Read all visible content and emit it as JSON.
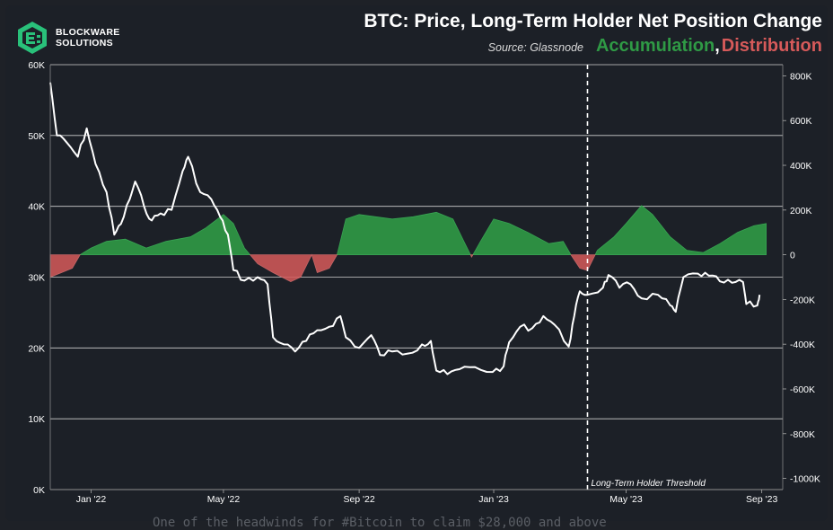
{
  "brand": {
    "line1": "BLOCKWARE",
    "line2": "SOLUTIONS"
  },
  "header": {
    "title": "BTC: Price, Long-Term Holder Net Position Change",
    "source": "Source: Glassnode",
    "accumulation": "Accumulation",
    "comma": ",",
    "distribution": "Distribution"
  },
  "colors": {
    "accumulation": "#2f9a45",
    "distribution": "#d65a5a",
    "price_line": "#ffffff",
    "background": "#1c2027"
  },
  "footer": {
    "text": "One of the headwinds for #Bitcoin to claim $28,000 and above"
  },
  "chart_data": {
    "type": "line",
    "title": "BTC: Price, Long-Term Holder Net Position Change",
    "threshold_label": "Long-Term Holder Threshold",
    "threshold_date": "2023-03-27",
    "x_ticks": [
      {
        "date": "2022-01-01",
        "label": "Jan '22"
      },
      {
        "date": "2022-05-01",
        "label": "May '22"
      },
      {
        "date": "2022-09-01",
        "label": "Sep '22"
      },
      {
        "date": "2023-01-01",
        "label": "Jan '23"
      },
      {
        "date": "2023-05-01",
        "label": "May '23"
      },
      {
        "date": "2023-09-01",
        "label": "Sep '23"
      }
    ],
    "x_range": [
      "2021-11-25",
      "2023-09-20"
    ],
    "left_axis": {
      "ylim": [
        0,
        60000
      ],
      "ticks": [
        0,
        10000,
        20000,
        30000,
        40000,
        50000,
        60000
      ],
      "tick_labels": [
        "0K",
        "10K",
        "20K",
        "30K",
        "40K",
        "50K",
        "60K"
      ],
      "grid": true
    },
    "right_axis": {
      "ylim": [
        -1050000,
        850000
      ],
      "ticks": [
        -1000000,
        -800000,
        -600000,
        -400000,
        -200000,
        0,
        200000,
        400000,
        600000,
        800000
      ],
      "tick_labels": [
        "-1000K",
        "-800K",
        "-600K",
        "-400K",
        "-200K",
        "0",
        "200K",
        "400K",
        "600K",
        "800K"
      ]
    },
    "series": [
      {
        "name": "Accumulation",
        "axis": "right",
        "kind": "area",
        "points": [
          [
            "2021-11-25",
            -100000
          ],
          [
            "2021-12-15",
            -60000
          ],
          [
            "2021-12-22",
            0
          ],
          [
            "2022-01-01",
            30000
          ],
          [
            "2022-01-15",
            60000
          ],
          [
            "2022-02-01",
            70000
          ],
          [
            "2022-02-20",
            30000
          ],
          [
            "2022-03-10",
            60000
          ],
          [
            "2022-04-01",
            80000
          ],
          [
            "2022-04-15",
            120000
          ],
          [
            "2022-05-01",
            180000
          ],
          [
            "2022-05-10",
            140000
          ],
          [
            "2022-05-20",
            30000
          ],
          [
            "2022-06-01",
            -40000
          ],
          [
            "2022-06-15",
            -80000
          ],
          [
            "2022-07-01",
            -120000
          ],
          [
            "2022-07-10",
            -100000
          ],
          [
            "2022-07-20",
            0
          ],
          [
            "2022-07-25",
            -80000
          ],
          [
            "2022-08-05",
            -60000
          ],
          [
            "2022-08-12",
            0
          ],
          [
            "2022-08-20",
            160000
          ],
          [
            "2022-09-01",
            180000
          ],
          [
            "2022-10-01",
            160000
          ],
          [
            "2022-10-20",
            170000
          ],
          [
            "2022-11-10",
            190000
          ],
          [
            "2022-11-25",
            160000
          ],
          [
            "2022-12-05",
            60000
          ],
          [
            "2022-12-12",
            -10000
          ],
          [
            "2022-12-20",
            60000
          ],
          [
            "2023-01-01",
            160000
          ],
          [
            "2023-01-15",
            140000
          ],
          [
            "2023-02-01",
            100000
          ],
          [
            "2023-02-20",
            50000
          ],
          [
            "2023-03-05",
            60000
          ],
          [
            "2023-03-12",
            0
          ],
          [
            "2023-03-20",
            -60000
          ],
          [
            "2023-03-27",
            -70000
          ],
          [
            "2023-04-05",
            20000
          ],
          [
            "2023-04-20",
            80000
          ],
          [
            "2023-05-01",
            140000
          ],
          [
            "2023-05-15",
            220000
          ],
          [
            "2023-05-25",
            180000
          ],
          [
            "2023-06-10",
            80000
          ],
          [
            "2023-06-25",
            20000
          ],
          [
            "2023-07-10",
            10000
          ],
          [
            "2023-07-25",
            50000
          ],
          [
            "2023-08-10",
            100000
          ],
          [
            "2023-08-25",
            130000
          ],
          [
            "2023-09-05",
            140000
          ]
        ]
      },
      {
        "name": "Price",
        "axis": "left",
        "kind": "line",
        "points": [
          [
            "2021-11-25",
            57500
          ],
          [
            "2021-12-01",
            50000
          ],
          [
            "2021-12-10",
            49000
          ],
          [
            "2021-12-20",
            47000
          ],
          [
            "2021-12-28",
            51000
          ],
          [
            "2022-01-05",
            46000
          ],
          [
            "2022-01-15",
            42000
          ],
          [
            "2022-01-22",
            36000
          ],
          [
            "2022-01-28",
            37500
          ],
          [
            "2022-02-05",
            41000
          ],
          [
            "2022-02-10",
            43500
          ],
          [
            "2022-02-18",
            40000
          ],
          [
            "2022-02-25",
            38000
          ],
          [
            "2022-03-05",
            39000
          ],
          [
            "2022-03-15",
            39500
          ],
          [
            "2022-03-25",
            45000
          ],
          [
            "2022-03-30",
            47000
          ],
          [
            "2022-04-10",
            42000
          ],
          [
            "2022-04-20",
            41000
          ],
          [
            "2022-04-28",
            38500
          ],
          [
            "2022-05-05",
            36000
          ],
          [
            "2022-05-10",
            31000
          ],
          [
            "2022-05-20",
            29500
          ],
          [
            "2022-06-01",
            30000
          ],
          [
            "2022-06-10",
            29000
          ],
          [
            "2022-06-15",
            21500
          ],
          [
            "2022-06-25",
            20500
          ],
          [
            "2022-07-05",
            19500
          ],
          [
            "2022-07-15",
            21000
          ],
          [
            "2022-07-25",
            22500
          ],
          [
            "2022-08-05",
            23000
          ],
          [
            "2022-08-15",
            24500
          ],
          [
            "2022-08-20",
            21500
          ],
          [
            "2022-09-01",
            20000
          ],
          [
            "2022-09-12",
            21800
          ],
          [
            "2022-09-20",
            19000
          ],
          [
            "2022-10-01",
            19500
          ],
          [
            "2022-10-15",
            19200
          ],
          [
            "2022-10-28",
            20500
          ],
          [
            "2022-11-05",
            21000
          ],
          [
            "2022-11-10",
            16800
          ],
          [
            "2022-11-20",
            16300
          ],
          [
            "2022-12-01",
            17000
          ],
          [
            "2022-12-15",
            17300
          ],
          [
            "2022-12-31",
            16600
          ],
          [
            "2023-01-10",
            17400
          ],
          [
            "2023-01-15",
            20800
          ],
          [
            "2023-01-25",
            23000
          ],
          [
            "2023-02-05",
            22800
          ],
          [
            "2023-02-15",
            24500
          ],
          [
            "2023-02-25",
            23300
          ],
          [
            "2023-03-10",
            20200
          ],
          [
            "2023-03-15",
            24500
          ],
          [
            "2023-03-20",
            28000
          ],
          [
            "2023-03-27",
            27500
          ],
          [
            "2023-04-10",
            28500
          ],
          [
            "2023-04-15",
            30300
          ],
          [
            "2023-04-25",
            28500
          ],
          [
            "2023-05-05",
            29000
          ],
          [
            "2023-05-15",
            27000
          ],
          [
            "2023-05-30",
            27500
          ],
          [
            "2023-06-10",
            26000
          ],
          [
            "2023-06-15",
            25100
          ],
          [
            "2023-06-22",
            30000
          ],
          [
            "2023-07-05",
            30500
          ],
          [
            "2023-07-15",
            30200
          ],
          [
            "2023-07-25",
            29400
          ],
          [
            "2023-08-05",
            29200
          ],
          [
            "2023-08-15",
            29300
          ],
          [
            "2023-08-18",
            26200
          ],
          [
            "2023-08-28",
            26000
          ],
          [
            "2023-08-30",
            27500
          ]
        ]
      }
    ]
  }
}
